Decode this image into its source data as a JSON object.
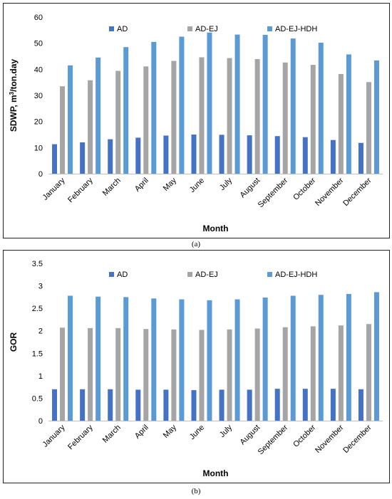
{
  "captions": [
    "(a)",
    "(b)"
  ],
  "chart_data": [
    {
      "type": "bar",
      "categories": [
        "January",
        "February",
        "March",
        "April",
        "May",
        "June",
        "July",
        "August",
        "September",
        "October",
        "November",
        "December"
      ],
      "series": [
        {
          "name": "AD",
          "color": "#4472C4",
          "values": [
            11.3,
            12.0,
            13.2,
            13.8,
            14.6,
            15.0,
            14.9,
            14.7,
            14.4,
            14.0,
            12.9,
            11.8
          ]
        },
        {
          "name": "AD-EJ",
          "color": "#A5A5A5",
          "values": [
            33.5,
            35.8,
            39.4,
            41.1,
            43.2,
            44.6,
            44.3,
            43.9,
            42.6,
            41.7,
            38.2,
            35.1
          ]
        },
        {
          "name": "AD-EJ-HDH",
          "color": "#5B9BD5",
          "values": [
            41.5,
            44.5,
            48.5,
            50.5,
            52.5,
            54.1,
            53.3,
            53.2,
            51.8,
            50.2,
            45.7,
            43.4
          ]
        }
      ],
      "xlabel": "Month",
      "ylabel": "SDWP, m³/ton.day",
      "ylabel_main": "SDWP, m",
      "ylabel_sup": "3",
      "ylabel_tail": "/ton.day",
      "ylim": [
        0,
        60
      ],
      "yticks": [
        "0",
        "10",
        "20",
        "30",
        "40",
        "50",
        "60"
      ],
      "legend_position": "top"
    },
    {
      "type": "bar",
      "categories": [
        "January",
        "February",
        "March",
        "April",
        "May",
        "June",
        "July",
        "August",
        "September",
        "October",
        "November",
        "December"
      ],
      "series": [
        {
          "name": "AD",
          "color": "#4472C4",
          "values": [
            0.7,
            0.7,
            0.7,
            0.69,
            0.69,
            0.68,
            0.69,
            0.69,
            0.71,
            0.71,
            0.71,
            0.7
          ]
        },
        {
          "name": "AD-EJ",
          "color": "#A5A5A5",
          "values": [
            2.07,
            2.06,
            2.06,
            2.04,
            2.03,
            2.02,
            2.03,
            2.05,
            2.08,
            2.1,
            2.12,
            2.15
          ]
        },
        {
          "name": "AD-EJ-HDH",
          "color": "#5B9BD5",
          "values": [
            2.78,
            2.76,
            2.75,
            2.72,
            2.7,
            2.68,
            2.7,
            2.74,
            2.78,
            2.8,
            2.82,
            2.86
          ]
        }
      ],
      "xlabel": "Month",
      "ylabel": "GOR",
      "ylim": [
        0,
        3.5
      ],
      "yticks": [
        "0",
        "0.5",
        "1",
        "1.5",
        "2",
        "2.5",
        "3",
        "3.5"
      ],
      "legend_position": "top"
    }
  ]
}
